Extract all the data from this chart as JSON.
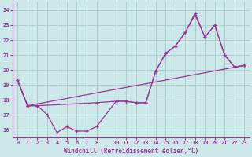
{
  "xlabel": "Windchill (Refroidissement éolien,°C)",
  "bg_color": "#cce8e8",
  "grid_color": "#aacccc",
  "line_color": "#993399",
  "axis_color": "#993399",
  "xlim": [
    -0.5,
    23.5
  ],
  "ylim": [
    15.5,
    24.5
  ],
  "xticks": [
    0,
    1,
    2,
    3,
    4,
    5,
    6,
    7,
    8,
    10,
    11,
    12,
    13,
    14,
    15,
    16,
    17,
    18,
    19,
    20,
    21,
    22,
    23
  ],
  "yticks": [
    16,
    17,
    18,
    19,
    20,
    21,
    22,
    23,
    24
  ],
  "line1_x": [
    0,
    1,
    2,
    3,
    4,
    5,
    6,
    7,
    8,
    10,
    11,
    12,
    13,
    14,
    15,
    16,
    17,
    18,
    19,
    20,
    21,
    22,
    23
  ],
  "line1_y": [
    19.3,
    17.6,
    17.6,
    17.0,
    15.8,
    16.2,
    15.9,
    15.9,
    16.2,
    17.9,
    17.9,
    17.8,
    17.8,
    19.9,
    21.1,
    21.6,
    22.5,
    23.7,
    22.2,
    23.0,
    21.0,
    20.2,
    20.3
  ],
  "line2_x": [
    0,
    1,
    2,
    8,
    10,
    11,
    12,
    13,
    14,
    15,
    16,
    17,
    18,
    19,
    20,
    21,
    22,
    23
  ],
  "line2_y": [
    19.3,
    17.6,
    17.6,
    17.8,
    17.9,
    17.9,
    17.8,
    17.8,
    19.9,
    21.1,
    21.6,
    22.5,
    23.8,
    22.2,
    23.0,
    21.0,
    20.2,
    20.3
  ],
  "line3_x": [
    0,
    1,
    23
  ],
  "line3_y": [
    19.3,
    17.6,
    20.3
  ]
}
